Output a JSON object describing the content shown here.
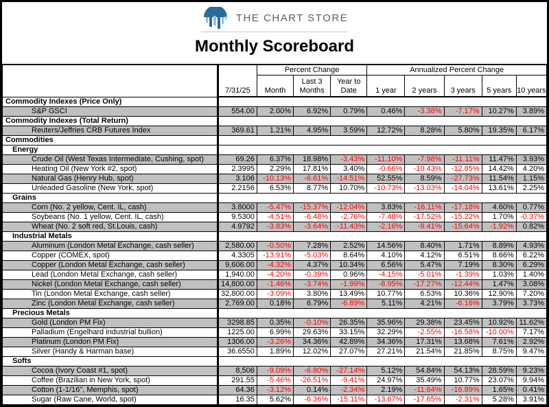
{
  "page": {
    "brand": "THE CHART STORE",
    "title": "Monthly Scoreboard"
  },
  "colors": {
    "logo_blue": "#2a6a9e",
    "logo_light_blue": "#9bbcd6",
    "negative_red": "#ff0000",
    "shaded_row_gray": "#c0c0c0"
  },
  "table": {
    "date_header": "7/31/25",
    "group_headers": [
      "Percent Change",
      "Annualized Percent Change"
    ],
    "sub_headers": [
      "Month",
      "Last 3\nMonths",
      "Year to\nDate",
      "1 year",
      "2 years",
      "3 years",
      "5 years",
      "10 years"
    ],
    "rows": [
      {
        "type": "section",
        "label": "Commodity Indexes (Price Only)"
      },
      {
        "type": "item",
        "label": "S&P GSCI",
        "values": [
          "554.00",
          "2.00%",
          "6.92%",
          "0.79%",
          "0.46%",
          "-3.38%",
          "-7.17%",
          "10.27%",
          "3.89%"
        ]
      },
      {
        "type": "section",
        "label": "Commodity Indexes (Total Return)"
      },
      {
        "type": "item",
        "label": "Reuters/Jeffries CRB Futures Index",
        "values": [
          "369.61",
          "1.21%",
          "4.95%",
          "3.59%",
          "12.72%",
          "8.28%",
          "5.80%",
          "19.35%",
          "6.17%"
        ]
      },
      {
        "type": "section",
        "label": "Commodities"
      },
      {
        "type": "subsection",
        "label": "Energy"
      },
      {
        "type": "item",
        "label": "Crude Oil (West Texas Intermediate, Cushing, spot)",
        "values": [
          "69.26",
          "6.37%",
          "18.98%",
          "-3.43%",
          "-11.10%",
          "-7.98%",
          "-11.11%",
          "11.47%",
          "3.93%"
        ]
      },
      {
        "type": "item",
        "label": "Heating Oil (New York #2, spot)",
        "values": [
          "2.3995",
          "2.29%",
          "17.81%",
          "3.40%",
          "-0.66%",
          "-10.43%",
          "-12.85%",
          "14.42%",
          "4.20%"
        ]
      },
      {
        "type": "item",
        "label": "Natural Gas (Henry Hub, spot)",
        "values": [
          "3.106",
          "-10.13%",
          "-6.61%",
          "-14.51%",
          "52.55%",
          "8.59%",
          "-27.73%",
          "11.54%",
          "1.15%"
        ]
      },
      {
        "type": "item",
        "label": "Unleaded Gasoline (New York, spot)",
        "values": [
          "2.2156",
          "6.53%",
          "8.77%",
          "10.70%",
          "-10.73%",
          "-13.03%",
          "-14.04%",
          "13.61%",
          "2.25%"
        ]
      },
      {
        "type": "subsection",
        "label": "Grains"
      },
      {
        "type": "item",
        "label": "Corn (No. 2 yellow, Cent. IL, cash)",
        "values": [
          "3.8000",
          "-5.47%",
          "-15.37%",
          "-12.04%",
          "3.83%",
          "-16.11%",
          "-17.18%",
          "4.60%",
          "0.77%"
        ]
      },
      {
        "type": "item",
        "label": "Soybeans (No. 1 yellow,  Cent. IL, cash)",
        "values": [
          "9.5300",
          "-4.51%",
          "-6.48%",
          "-2.76%",
          "-7.48%",
          "-17.52%",
          "-15.22%",
          "1.70%",
          "-0.37%"
        ]
      },
      {
        "type": "item",
        "label": "Wheat (No. 2 soft red, St.Louis, cash)",
        "values": [
          "4.9792",
          "-3.83%",
          "-3.64%",
          "-11.43%",
          "-2.16%",
          "-9.41%",
          "-15.64%",
          "-1.92%",
          "0.82%"
        ]
      },
      {
        "type": "subsection",
        "label": "Industrial Metals"
      },
      {
        "type": "item",
        "label": "Aluminum (London Metal Exchange, cash seller)",
        "values": [
          "2,580.00",
          "-0.50%",
          "7.28%",
          "2.52%",
          "14.56%",
          "8.40%",
          "1.71%",
          "8.89%",
          "4.93%"
        ]
      },
      {
        "type": "item",
        "label": "Copper (COMEX, spot)",
        "values": [
          "4.3305",
          "-13.91%",
          "-5.03%",
          "8.64%",
          "4.10%",
          "4.12%",
          "6.51%",
          "8.66%",
          "6.22%"
        ]
      },
      {
        "type": "item",
        "label": "Copper (London Metal Exchange, cash seller)",
        "values": [
          "9,606.00",
          "-4.32%",
          "4.37%",
          "10.34%",
          "6.56%",
          "5.47%",
          "7.19%",
          "8.30%",
          "6.29%"
        ]
      },
      {
        "type": "item",
        "label": "Lead (London Metal Exchange, cash seller)",
        "values": [
          "1,940.00",
          "-4.20%",
          "-0.39%",
          "0.96%",
          "-4.15%",
          "-5.01%",
          "-1.39%",
          "1.03%",
          "1.40%"
        ]
      },
      {
        "type": "item",
        "label": "Nickel (London Metal Exchange, cash seller)",
        "values": [
          "14,800.00",
          "-1.46%",
          "-3.74%",
          "-1.99%",
          "-8.95%",
          "-17.27%",
          "-12.44%",
          "1.47%",
          "3.08%"
        ]
      },
      {
        "type": "item",
        "label": "Tin (London Metal Exchange, cash seller)",
        "values": [
          "32,800.00",
          "-3.09%",
          "3.80%",
          "13.49%",
          "10.77%",
          "6.53%",
          "10.36%",
          "12.90%",
          "7.20%"
        ]
      },
      {
        "type": "item",
        "label": "Zinc (London Metal Exchange, cash seller)",
        "values": [
          "2,769.00",
          "0.18%",
          "6.79%",
          "-6.89%",
          "5.11%",
          "4.21%",
          "-6.16%",
          "3.79%",
          "3.73%"
        ]
      },
      {
        "type": "subsection",
        "label": "Precious Metals"
      },
      {
        "type": "item",
        "label": "Gold (London PM Fix)",
        "values": [
          "3298.85",
          "0.35%",
          "-0.10%",
          "26.35%",
          "35.96%",
          "29.38%",
          "23.45%",
          "10.92%",
          "11.62%"
        ]
      },
      {
        "type": "item",
        "label": "Palladium (Engelhard industrial bullion)",
        "values": [
          "1225.00",
          "6.99%",
          "29.63%",
          "33.15%",
          "32.29%",
          "-2.55%",
          "-16.58%",
          "-10.00%",
          "7.17%"
        ]
      },
      {
        "type": "item",
        "label": "Platinum (London PM Fix)",
        "values": [
          "1306.00",
          "-3.26%",
          "34.36%",
          "42.89%",
          "34.36%",
          "17.31%",
          "13.68%",
          "7.61%",
          "2.92%"
        ]
      },
      {
        "type": "item",
        "label": "Silver (Handy & Harman base)",
        "values": [
          "36.6550",
          "1.89%",
          "12.02%",
          "27.07%",
          "27.21%",
          "21.54%",
          "21.85%",
          "8.75%",
          "9.47%"
        ]
      },
      {
        "type": "subsection",
        "label": "Softs"
      },
      {
        "type": "item",
        "label": "Cocoa (Ivory Coast #1, spot)",
        "values": [
          "8,506",
          "-9.09%",
          "-6.80%",
          "-27.14%",
          "5.12%",
          "54.84%",
          "54.13%",
          "28.59%",
          "9.23%"
        ]
      },
      {
        "type": "item",
        "label": "Coffee (Brazilian in New York, spot)",
        "values": [
          "291.55",
          "-5.46%",
          "-26.51%",
          "-9.41%",
          "24.97%",
          "35.49%",
          "10.77%",
          "23.07%",
          "9.94%"
        ]
      },
      {
        "type": "item",
        "label": "Cotton (1-1/16\", Memphis, spot)",
        "values": [
          "64.36",
          "-3.12%",
          "0.14%",
          "-2.34%",
          "2.19%",
          "-11.64%",
          "-16.89%",
          "1.65%",
          "0.41%"
        ]
      },
      {
        "type": "item",
        "label": "Sugar (Raw Cane, World, spot)",
        "values": [
          "16.35",
          "5.62%",
          "-6.36%",
          "-15.11%",
          "-13.67%",
          "-17.65%",
          "-2.31%",
          "5.28%",
          "3.91%"
        ]
      }
    ]
  }
}
